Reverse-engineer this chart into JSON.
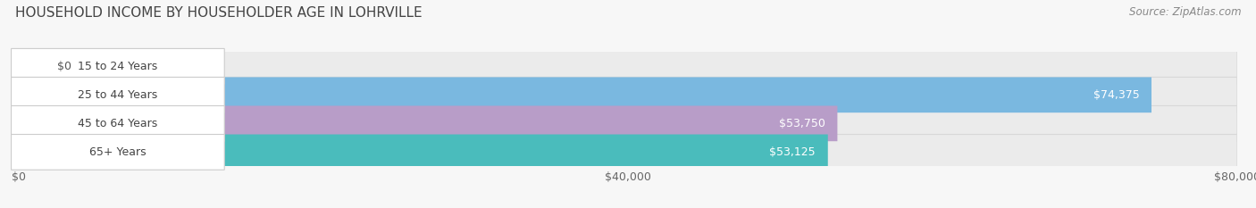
{
  "title": "HOUSEHOLD INCOME BY HOUSEHOLDER AGE IN LOHRVILLE",
  "source": "Source: ZipAtlas.com",
  "categories": [
    "15 to 24 Years",
    "25 to 44 Years",
    "45 to 64 Years",
    "65+ Years"
  ],
  "values": [
    0,
    74375,
    53750,
    53125
  ],
  "bar_colors": [
    "#f0a0a0",
    "#7ab8e0",
    "#b89dc8",
    "#4abcbc"
  ],
  "bar_bg_color": "#ebebeb",
  "bar_border_color": "#d8d8d8",
  "value_labels": [
    "$0",
    "$74,375",
    "$53,750",
    "$53,125"
  ],
  "xlim": [
    0,
    80000
  ],
  "xticks": [
    0,
    40000,
    80000
  ],
  "xticklabels": [
    "$0",
    "$40,000",
    "$80,000"
  ],
  "background_color": "#f7f7f7",
  "title_fontsize": 11,
  "source_fontsize": 8.5,
  "label_fontsize": 9,
  "tick_fontsize": 9
}
